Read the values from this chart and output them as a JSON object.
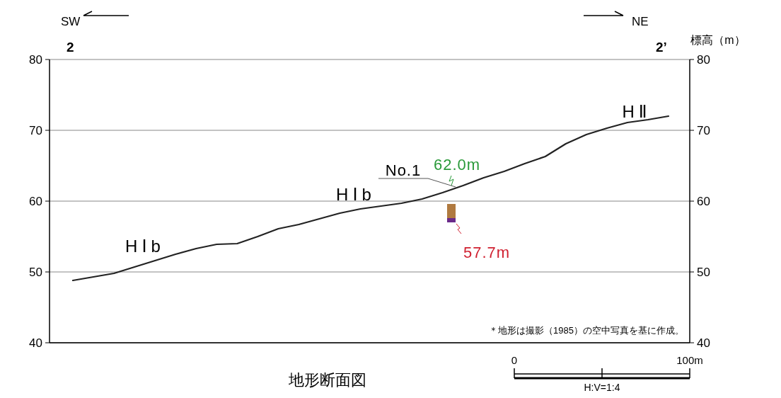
{
  "chart_data": {
    "type": "line",
    "title": "地形断面図",
    "y2label": "標高（m）",
    "categories": [
      null,
      null,
      null,
      null,
      null,
      null,
      null,
      null,
      null,
      null,
      null,
      null,
      null,
      null,
      null,
      null,
      null,
      null,
      null,
      null,
      null,
      null,
      null,
      null,
      null,
      null,
      null,
      null,
      null,
      null
    ],
    "series": [
      {
        "color": "#222222",
        "values": [
          48.8,
          49.3,
          49.8,
          50.7,
          51.6,
          52.5,
          53.3,
          53.9,
          54.0,
          55.0,
          56.1,
          56.7,
          57.5,
          58.3,
          58.9,
          59.3,
          59.7,
          60.3,
          61.2,
          62.2,
          63.3,
          64.2,
          65.3,
          66.3,
          68.1,
          69.4,
          70.3,
          71.1,
          71.5,
          72.0
        ]
      }
    ],
    "ylim": [
      40,
      80
    ],
    "yticks": [
      40,
      50,
      60,
      70,
      80
    ],
    "y2lim": [
      40,
      80
    ],
    "y2ticks": [
      40,
      50,
      60,
      70,
      80
    ],
    "grid": "y",
    "tick_labels": "y",
    "annotations": [
      "SW",
      "NE",
      "2",
      "2’",
      "HⅠb",
      "HⅠb",
      "HⅡ",
      "No.1",
      "62.0m",
      "57.7m",
      "＊地形は撮影（1985）の空中写真を基に作成。",
      "0",
      "100m",
      "H:V=1:4"
    ]
  }
}
